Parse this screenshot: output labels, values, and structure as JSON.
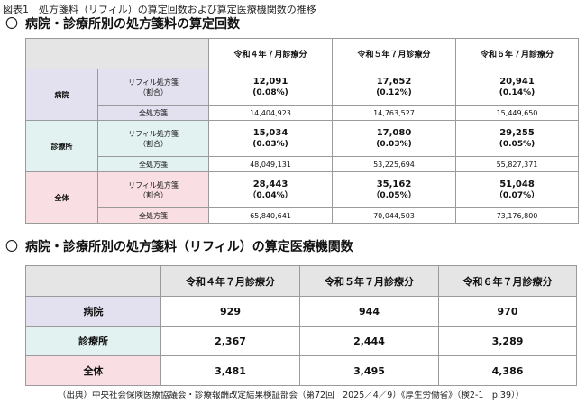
{
  "figure_title": "図表1　処方箋料（リフィル）の算定回数および算定医療機関数の推移",
  "section1": {
    "mark": "〇",
    "title": "病院・診療所別の処方箋料の算定回数",
    "columns": [
      "令和４年７月診療分",
      "令和５年７月診療分",
      "令和６年７月診療分"
    ],
    "label_refill": "リフィル処方箋",
    "label_ratio": "（割合）",
    "label_total": "全処方箋",
    "groups": [
      {
        "name": "病院",
        "refill": [
          {
            "v": "12,091",
            "p": "(0.08%)"
          },
          {
            "v": "17,652",
            "p": "(0.12%)"
          },
          {
            "v": "20,941",
            "p": "(0.14%)"
          }
        ],
        "total": [
          "14,404,923",
          "14,763,527",
          "15,449,650"
        ]
      },
      {
        "name": "診療所",
        "refill": [
          {
            "v": "15,034",
            "p": "(0.03%)"
          },
          {
            "v": "17,080",
            "p": "(0.03%)"
          },
          {
            "v": "29,255",
            "p": "(0.05%)"
          }
        ],
        "total": [
          "48,049,131",
          "53,225,694",
          "55,827,371"
        ]
      },
      {
        "name": "全体",
        "refill": [
          {
            "v": "28,443",
            "p": "（0.04%）"
          },
          {
            "v": "35,162",
            "p": "（0.05%）"
          },
          {
            "v": "51,048",
            "p": "（0.07%）"
          }
        ],
        "total": [
          "65,840,641",
          "70,044,503",
          "73,176,800"
        ]
      }
    ]
  },
  "section2": {
    "mark": "〇",
    "title": "病院・診療所別の処方箋料（リフィル）の算定医療機関数",
    "columns": [
      "令和４年７月診療分",
      "令和５年７月診療分",
      "令和６年７月診療分"
    ],
    "rows": [
      {
        "name": "病院",
        "values": [
          "929",
          "944",
          "970"
        ]
      },
      {
        "name": "診療所",
        "values": [
          "2,367",
          "2,444",
          "3,289"
        ]
      },
      {
        "name": "全体",
        "values": [
          "3,481",
          "3,495",
          "4,386"
        ]
      }
    ]
  },
  "source": "（出典）中央社会保険医療協議会・診療報酬改定結果検証部会（第72回　2025／4／9）《厚生労働省》（検2-1　p.39））"
}
